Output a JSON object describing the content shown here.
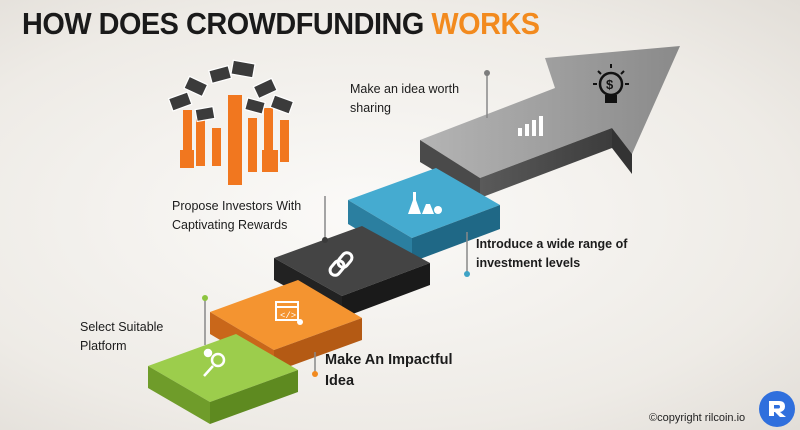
{
  "title": {
    "main": "HOW DOES CROWDFUNDING ",
    "accent": "WORKS"
  },
  "steps": [
    {
      "label": "Select Suitable Platform",
      "icon": "search-gear-icon",
      "color": "#8cc43f"
    },
    {
      "label": "Make An Impactful Idea",
      "icon": "code-window-icon",
      "color": "#f28a1e"
    },
    {
      "label": "Propose Investors With Captivating Rewards",
      "icon": "chain-link-icon",
      "color": "#3a3a3a"
    },
    {
      "label": "Introduce a wide range of investment levels",
      "icon": "lab-flasks-icon",
      "color": "#3ea3c6"
    },
    {
      "label": "Make  an idea worth sharing",
      "icon": "bar-chart-icon",
      "color": "#7d7d7d"
    }
  ],
  "arrow_icon": "lightbulb-dollar-icon",
  "decoration_icon": "hands-holding-money-icon",
  "copyright": "©copyright rilcoin.io",
  "colors": {
    "accent": "#f28a1e",
    "green": "#8cc43f",
    "orange": "#f28a1e",
    "dark": "#3a3a3a",
    "blue": "#3ea3c6",
    "gray": "#7d7d7d"
  }
}
